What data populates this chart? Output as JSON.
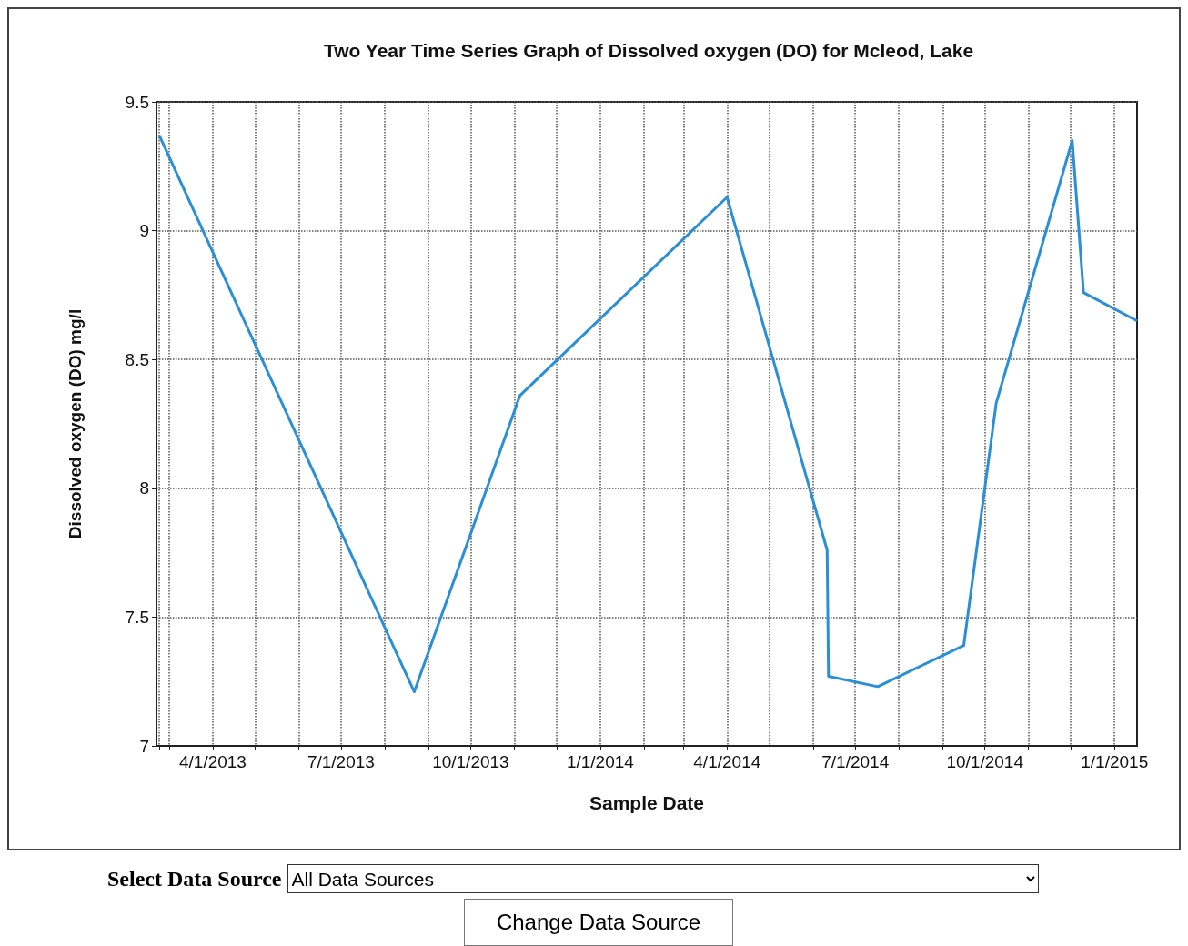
{
  "chart_data": {
    "type": "line",
    "title": "Two Year Time Series Graph of Dissolved oxygen (DO) for Mcleod, Lake",
    "xlabel": "Sample Date",
    "ylabel": "Dissolved oxygen (DO) mg/l",
    "x": [
      "2013-02-22",
      "2013-08-22",
      "2013-11-05",
      "2014-04-01",
      "2014-06-11",
      "2014-06-12",
      "2014-07-17",
      "2014-09-16",
      "2014-10-09",
      "2014-12-02",
      "2014-12-10",
      "2015-01-17"
    ],
    "series": [
      {
        "color": "#2a8fd6",
        "values": [
          9.37,
          7.21,
          8.36,
          9.13,
          7.76,
          7.27,
          7.23,
          7.39,
          8.33,
          9.35,
          8.76,
          8.65
        ]
      }
    ],
    "xlim": [
      "2013-02-20",
      "2015-01-17"
    ],
    "xticks": [
      {
        "value": "2013-02-22",
        "label": null
      },
      {
        "value": "2013-03-01",
        "label": null
      },
      {
        "value": "2013-04-01",
        "label": "4/1/2013"
      },
      {
        "value": "2013-05-01",
        "label": null
      },
      {
        "value": "2013-06-01",
        "label": null
      },
      {
        "value": "2013-07-01",
        "label": "7/1/2013"
      },
      {
        "value": "2013-08-01",
        "label": null
      },
      {
        "value": "2013-09-01",
        "label": null
      },
      {
        "value": "2013-10-01",
        "label": "10/1/2013"
      },
      {
        "value": "2013-11-01",
        "label": null
      },
      {
        "value": "2013-12-01",
        "label": null
      },
      {
        "value": "2014-01-01",
        "label": "1/1/2014"
      },
      {
        "value": "2014-02-01",
        "label": null
      },
      {
        "value": "2014-03-01",
        "label": null
      },
      {
        "value": "2014-04-01",
        "label": "4/1/2014"
      },
      {
        "value": "2014-05-01",
        "label": null
      },
      {
        "value": "2014-06-01",
        "label": null
      },
      {
        "value": "2014-07-01",
        "label": "7/1/2014"
      },
      {
        "value": "2014-08-01",
        "label": null
      },
      {
        "value": "2014-09-01",
        "label": null
      },
      {
        "value": "2014-10-01",
        "label": "10/1/2014"
      },
      {
        "value": "2014-11-01",
        "label": null
      },
      {
        "value": "2014-12-01",
        "label": null
      },
      {
        "value": "2015-01-01",
        "label": "1/1/2015"
      }
    ],
    "ylim": [
      7,
      9.5
    ],
    "yticks": [
      7,
      7.5,
      8,
      8.5,
      9,
      9.5
    ],
    "grid": true,
    "marker": "none",
    "line_style": "solid",
    "annotations": [
      "Select Data Source",
      "All Data Sources",
      "Change Data Source"
    ]
  }
}
